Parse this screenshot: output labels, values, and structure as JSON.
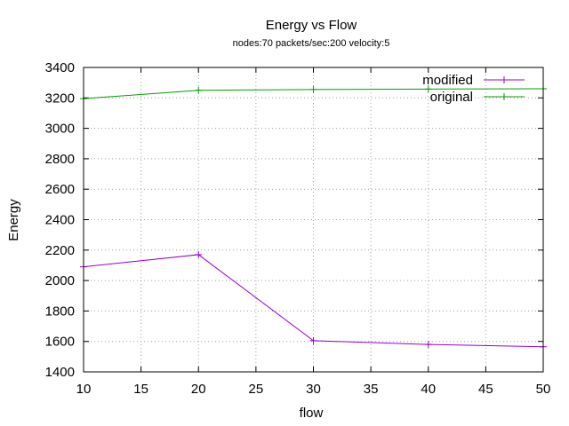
{
  "chart_data": {
    "type": "line",
    "title": "Energy vs Flow",
    "subtitle": "nodes:70  packets/sec:200  velocity:5",
    "xlabel": "flow",
    "ylabel": "Energy",
    "xlim": [
      10,
      50
    ],
    "ylim": [
      1400,
      3400
    ],
    "xticks": [
      10,
      15,
      20,
      25,
      30,
      35,
      40,
      45,
      50
    ],
    "yticks": [
      1400,
      1600,
      1800,
      2000,
      2200,
      2400,
      2600,
      2800,
      3000,
      3200,
      3400
    ],
    "grid": true,
    "legend_position": "top-right",
    "series": [
      {
        "name": "modified",
        "color": "#9400d3",
        "x": [
          10,
          20,
          30,
          40,
          50
        ],
        "values": [
          2090,
          2170,
          1605,
          1580,
          1565
        ]
      },
      {
        "name": "original",
        "color": "#009e00",
        "x": [
          10,
          20,
          30,
          40,
          50
        ],
        "values": [
          3195,
          3250,
          3255,
          3258,
          3260
        ]
      }
    ]
  }
}
